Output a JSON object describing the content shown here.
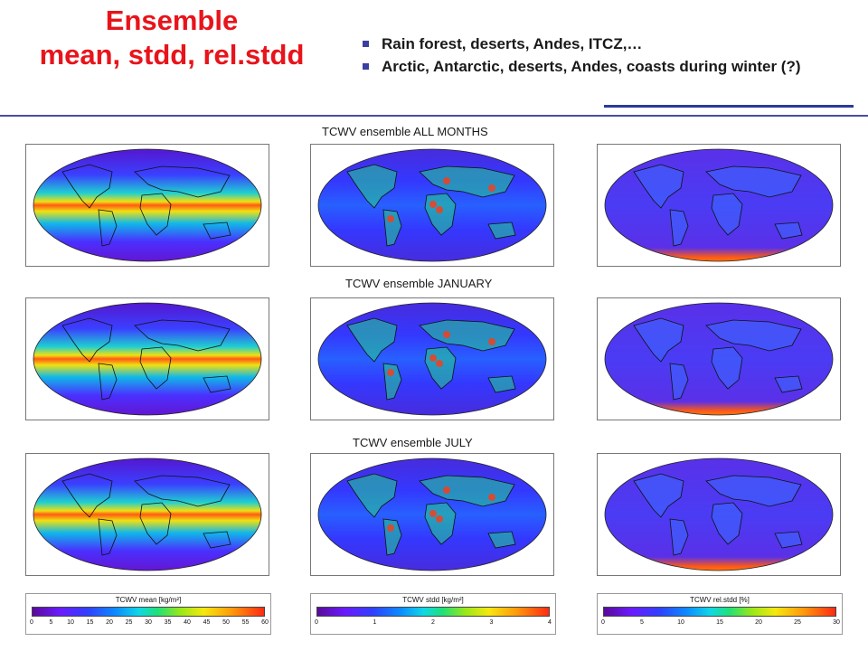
{
  "header": {
    "title_line1": "Ensemble",
    "title_line2": "mean, stdd, rel.stdd",
    "bullets": [
      "Rain forest, deserts, Andes, ITCZ,…",
      "Arctic, Antarctic, deserts, Andes, coasts during winter (?)"
    ]
  },
  "rows": [
    {
      "label": "TCWV ensemble ALL MONTHS"
    },
    {
      "label": "TCWV ensemble JANUARY"
    },
    {
      "label": "TCWV ensemble JULY"
    }
  ],
  "colorbars": [
    {
      "title": "TCWV mean [kg/m²]",
      "ticks": [
        "0",
        "5",
        "10",
        "15",
        "20",
        "25",
        "30",
        "35",
        "40",
        "45",
        "50",
        "55",
        "60"
      ]
    },
    {
      "title": "TCWV stdd [kg/m²]",
      "ticks": [
        "0",
        "1",
        "2",
        "3",
        "4"
      ]
    },
    {
      "title": "TCWV rel.stdd [%]",
      "ticks": [
        "0",
        "5",
        "10",
        "15",
        "20",
        "25",
        "30"
      ]
    }
  ],
  "colors": {
    "title": "#e8141b",
    "rule": "#4b4f9e",
    "bullet": "#3b3fa0",
    "map_low": "#6a1bff",
    "map_high": "#ff2a14"
  }
}
